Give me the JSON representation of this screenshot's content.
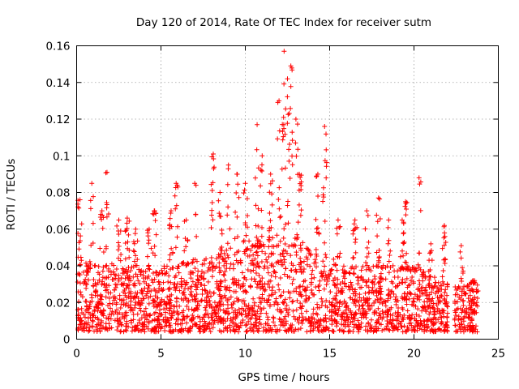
{
  "chart_data": {
    "type": "scatter",
    "title": "Day 120 of 2014, Rate Of TEC Index for receiver sutm",
    "xlabel": "GPS time / hours",
    "ylabel": "ROTI / TECUs",
    "xlim": [
      0,
      25
    ],
    "ylim": [
      0,
      0.16
    ],
    "x_ticks": [
      0,
      5,
      10,
      15,
      20,
      25
    ],
    "x_tick_labels": [
      "0",
      "5",
      "10",
      "15",
      "20",
      "25"
    ],
    "y_ticks": [
      0,
      0.02,
      0.04,
      0.06,
      0.08,
      0.1,
      0.12,
      0.14,
      0.16
    ],
    "y_tick_labels": [
      "0",
      "0.02",
      "0.04",
      "0.06",
      "0.08",
      "0.1",
      "0.12",
      "0.14",
      "0.16"
    ],
    "grid": true,
    "marker": "+",
    "color": "#ff0000",
    "series": [
      {
        "name": "ROTI",
        "x_range": [
          0,
          23.8
        ],
        "dense_upper_envelope": [
          [
            0,
            0.045
          ],
          [
            1,
            0.04
          ],
          [
            2,
            0.042
          ],
          [
            3,
            0.04
          ],
          [
            4,
            0.038
          ],
          [
            5,
            0.04
          ],
          [
            6,
            0.042
          ],
          [
            7,
            0.043
          ],
          [
            8,
            0.045
          ],
          [
            9,
            0.05
          ],
          [
            10,
            0.055
          ],
          [
            11,
            0.055
          ],
          [
            12,
            0.058
          ],
          [
            13,
            0.055
          ],
          [
            14,
            0.05
          ],
          [
            15,
            0.045
          ],
          [
            16,
            0.04
          ],
          [
            17,
            0.04
          ],
          [
            18,
            0.042
          ],
          [
            19,
            0.04
          ],
          [
            20,
            0.04
          ],
          [
            21,
            0.035
          ],
          [
            22,
            0.03
          ],
          [
            23,
            0.03
          ],
          [
            23.8,
            0.03
          ]
        ],
        "peaks": [
          [
            0.2,
            0.076
          ],
          [
            0.9,
            0.085
          ],
          [
            1.5,
            0.07
          ],
          [
            1.8,
            0.091
          ],
          [
            2.5,
            0.065
          ],
          [
            3.0,
            0.066
          ],
          [
            3.5,
            0.06
          ],
          [
            4.3,
            0.06
          ],
          [
            4.6,
            0.07
          ],
          [
            5.6,
            0.07
          ],
          [
            5.9,
            0.085
          ],
          [
            6.5,
            0.065
          ],
          [
            7.0,
            0.085
          ],
          [
            8.1,
            0.101
          ],
          [
            8.5,
            0.08
          ],
          [
            9.0,
            0.095
          ],
          [
            9.5,
            0.09
          ],
          [
            10.0,
            0.085
          ],
          [
            10.7,
            0.117
          ],
          [
            11.0,
            0.1
          ],
          [
            11.5,
            0.09
          ],
          [
            12.0,
            0.13
          ],
          [
            12.3,
            0.157
          ],
          [
            12.5,
            0.142
          ],
          [
            12.7,
            0.149
          ],
          [
            13.0,
            0.12
          ],
          [
            13.2,
            0.09
          ],
          [
            14.3,
            0.09
          ],
          [
            14.7,
            0.116
          ],
          [
            15.5,
            0.065
          ],
          [
            16.5,
            0.065
          ],
          [
            17.2,
            0.07
          ],
          [
            17.9,
            0.077
          ],
          [
            18.5,
            0.065
          ],
          [
            19.3,
            0.065
          ],
          [
            19.5,
            0.075
          ],
          [
            20.3,
            0.088
          ],
          [
            21.0,
            0.052
          ],
          [
            21.8,
            0.062
          ],
          [
            22.8,
            0.051
          ],
          [
            23.5,
            0.032
          ]
        ]
      }
    ]
  }
}
